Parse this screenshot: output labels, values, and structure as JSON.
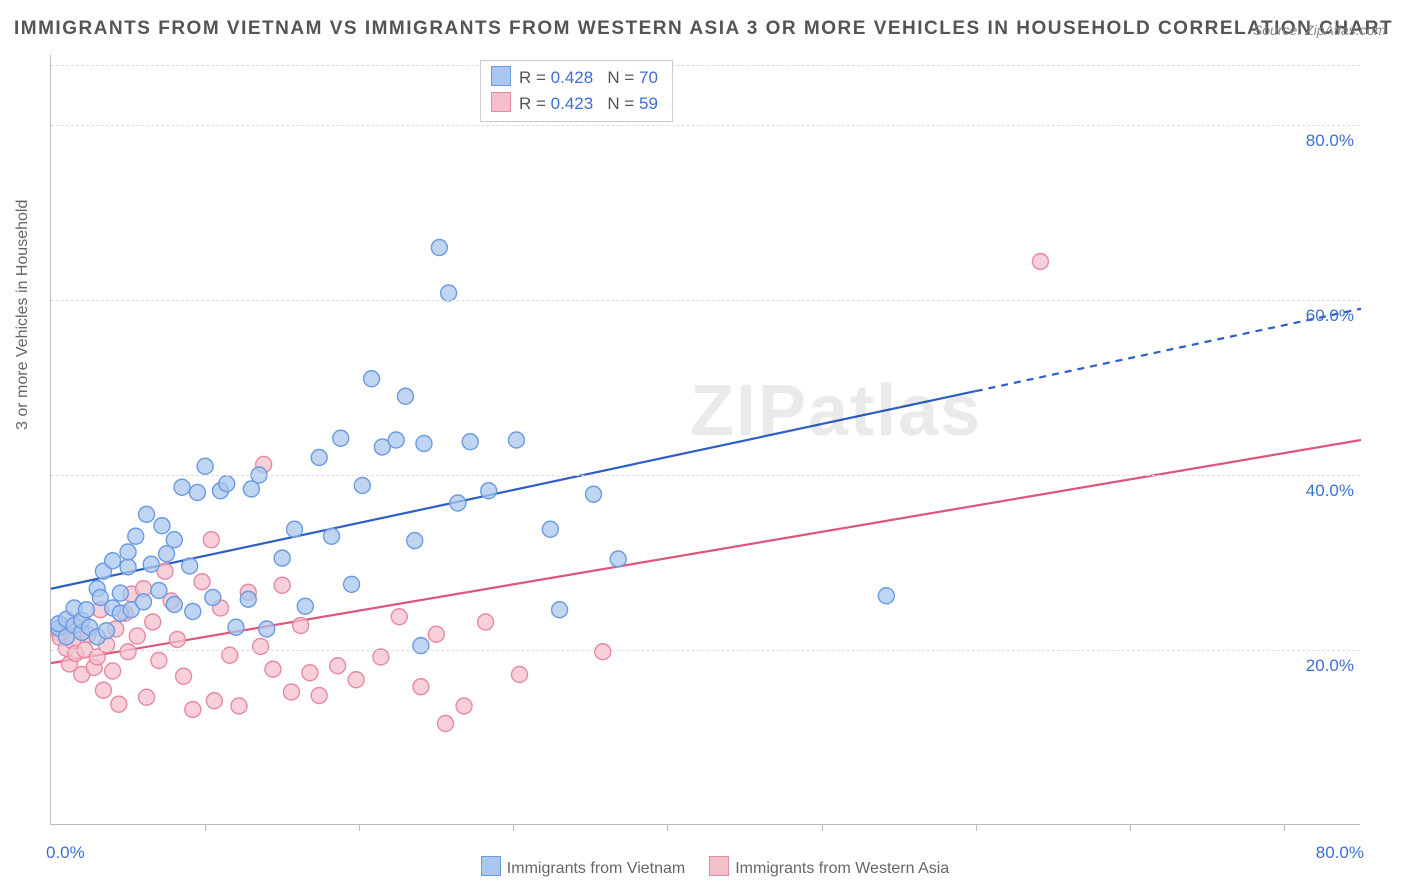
{
  "title": "IMMIGRANTS FROM VIETNAM VS IMMIGRANTS FROM WESTERN ASIA 3 OR MORE VEHICLES IN HOUSEHOLD CORRELATION CHART",
  "source": "Source: ZipAtlas.com",
  "watermark": "ZIPatlas",
  "ylabel": "3 or more Vehicles in Household",
  "axes": {
    "xmin": 0,
    "xmax": 85,
    "ymin": 0,
    "ymax": 88,
    "ytick_labels": [
      "20.0%",
      "40.0%",
      "60.0%",
      "80.0%"
    ],
    "ytick_values": [
      20,
      40,
      60,
      80
    ],
    "xtick_minor": [
      10,
      20,
      30,
      40,
      50,
      60,
      70,
      80
    ],
    "xtick_label_left": "0.0%",
    "xtick_label_right": "80.0%",
    "grid_color": "#dddddd",
    "axis_color": "#bbbbbb",
    "tick_label_color": "#3b6fd6",
    "tick_label_fontsize": 17,
    "axis_label_color": "#666666"
  },
  "series": [
    {
      "name": "Immigrants from Vietnam",
      "marker_fill": "#a9c7ee",
      "marker_stroke": "#6b9be0",
      "marker_radius": 8,
      "marker_opacity": 0.75,
      "line_color": "#2d5fc4",
      "line_width": 2.2,
      "line_dash_after_x": 60,
      "r": "0.428",
      "n": "70",
      "trend": {
        "x1": 0,
        "y1": 27,
        "x2": 85,
        "y2": 59
      },
      "points": [
        [
          0.5,
          22.5
        ],
        [
          0.5,
          23
        ],
        [
          1,
          23.5
        ],
        [
          1,
          21.5
        ],
        [
          1.5,
          24.8
        ],
        [
          1.5,
          22.8
        ],
        [
          2,
          22
        ],
        [
          2,
          23.4
        ],
        [
          2.3,
          24.6
        ],
        [
          2.5,
          22.6
        ],
        [
          3,
          27
        ],
        [
          3,
          21.5
        ],
        [
          3.2,
          26
        ],
        [
          3.4,
          29
        ],
        [
          3.6,
          22.2
        ],
        [
          4,
          24.8
        ],
        [
          4,
          30.2
        ],
        [
          4.5,
          26.5
        ],
        [
          4.5,
          24.2
        ],
        [
          5,
          29.5
        ],
        [
          5,
          31.2
        ],
        [
          5.2,
          24.6
        ],
        [
          5.5,
          33
        ],
        [
          6,
          25.5
        ],
        [
          6.2,
          35.5
        ],
        [
          6.5,
          29.8
        ],
        [
          7,
          26.8
        ],
        [
          7.2,
          34.2
        ],
        [
          7.5,
          31
        ],
        [
          8,
          32.6
        ],
        [
          8,
          25.2
        ],
        [
          8.5,
          38.6
        ],
        [
          9,
          29.6
        ],
        [
          9.2,
          24.4
        ],
        [
          9.5,
          38
        ],
        [
          10,
          41
        ],
        [
          10.5,
          26
        ],
        [
          11,
          38.2
        ],
        [
          11.4,
          39
        ],
        [
          12,
          22.6
        ],
        [
          12.8,
          25.8
        ],
        [
          13,
          38.4
        ],
        [
          13.5,
          40
        ],
        [
          14,
          22.4
        ],
        [
          15,
          30.5
        ],
        [
          15.8,
          33.8
        ],
        [
          16.5,
          25
        ],
        [
          17.4,
          42
        ],
        [
          18.2,
          33
        ],
        [
          18.8,
          44.2
        ],
        [
          19.5,
          27.5
        ],
        [
          20.2,
          38.8
        ],
        [
          20.8,
          51
        ],
        [
          21.5,
          43.2
        ],
        [
          22.4,
          44
        ],
        [
          23,
          49
        ],
        [
          23.6,
          32.5
        ],
        [
          24,
          20.5
        ],
        [
          24.2,
          43.6
        ],
        [
          25.2,
          66
        ],
        [
          25.8,
          60.8
        ],
        [
          26.4,
          36.8
        ],
        [
          27.2,
          43.8
        ],
        [
          28.4,
          38.2
        ],
        [
          30.2,
          44
        ],
        [
          32.4,
          33.8
        ],
        [
          33,
          24.6
        ],
        [
          35.2,
          37.8
        ],
        [
          36.8,
          30.4
        ],
        [
          54.2,
          26.2
        ]
      ]
    },
    {
      "name": "Immigrants from Western Asia",
      "marker_fill": "#f4c0cc",
      "marker_stroke": "#e68aa4",
      "marker_radius": 8,
      "marker_opacity": 0.75,
      "line_color": "#e0567b",
      "line_width": 2.2,
      "line_dash_after_x": null,
      "r": "0.423",
      "n": "59",
      "trend": {
        "x1": 0,
        "y1": 18.5,
        "x2": 85,
        "y2": 44
      },
      "points": [
        [
          0.5,
          22
        ],
        [
          0.6,
          21.4
        ],
        [
          0.8,
          22.8
        ],
        [
          1,
          20.2
        ],
        [
          1.2,
          18.4
        ],
        [
          1.4,
          21
        ],
        [
          1.6,
          19.6
        ],
        [
          1.8,
          23
        ],
        [
          2,
          17.2
        ],
        [
          2.2,
          20
        ],
        [
          2.4,
          21.8
        ],
        [
          2.8,
          18
        ],
        [
          3,
          19.2
        ],
        [
          3.2,
          24.6
        ],
        [
          3.4,
          15.4
        ],
        [
          3.6,
          20.6
        ],
        [
          4,
          17.6
        ],
        [
          4.2,
          22.4
        ],
        [
          4.4,
          13.8
        ],
        [
          4.8,
          24.2
        ],
        [
          5,
          19.8
        ],
        [
          5.2,
          26.4
        ],
        [
          5.6,
          21.6
        ],
        [
          6,
          27
        ],
        [
          6.2,
          14.6
        ],
        [
          6.6,
          23.2
        ],
        [
          7,
          18.8
        ],
        [
          7.4,
          29
        ],
        [
          7.8,
          25.6
        ],
        [
          8.2,
          21.2
        ],
        [
          8.6,
          17
        ],
        [
          9.2,
          13.2
        ],
        [
          9.8,
          27.8
        ],
        [
          10.4,
          32.6
        ],
        [
          10.6,
          14.2
        ],
        [
          11,
          24.8
        ],
        [
          11.6,
          19.4
        ],
        [
          12.2,
          13.6
        ],
        [
          12.8,
          26.6
        ],
        [
          13.6,
          20.4
        ],
        [
          13.8,
          41.2
        ],
        [
          14.4,
          17.8
        ],
        [
          15,
          27.4
        ],
        [
          15.6,
          15.2
        ],
        [
          16.2,
          22.8
        ],
        [
          16.8,
          17.4
        ],
        [
          17.4,
          14.8
        ],
        [
          18.6,
          18.2
        ],
        [
          19.8,
          16.6
        ],
        [
          21.4,
          19.2
        ],
        [
          22.6,
          23.8
        ],
        [
          24,
          15.8
        ],
        [
          25,
          21.8
        ],
        [
          25.6,
          11.6
        ],
        [
          26.8,
          13.6
        ],
        [
          28.2,
          23.2
        ],
        [
          30.4,
          17.2
        ],
        [
          35.8,
          19.8
        ],
        [
          64.2,
          64.4
        ]
      ]
    }
  ],
  "x_legend": {
    "items": [
      {
        "swatch_fill": "#a9c7ee",
        "swatch_stroke": "#6b9be0",
        "label": "Immigrants from Vietnam"
      },
      {
        "swatch_fill": "#f4c0cc",
        "swatch_stroke": "#e68aa4",
        "label": "Immigrants from Western Asia"
      }
    ]
  },
  "stat_legend": {
    "border_color": "#cccccc",
    "bg": "#ffffff",
    "r_label": "R =",
    "n_label": "N ="
  }
}
